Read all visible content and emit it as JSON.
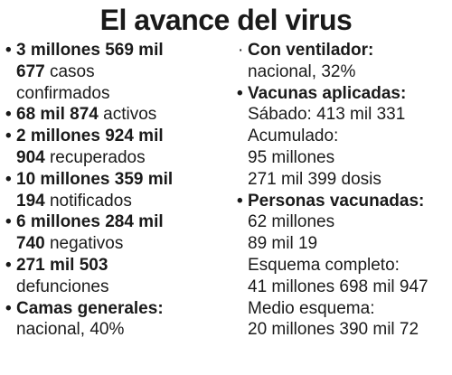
{
  "title": "El avance del virus",
  "left": [
    {
      "lines": [
        [
          {
            "t": "3 millones 569 mil",
            "b": true
          }
        ],
        [
          {
            "t": "677",
            "b": true
          },
          {
            "t": " casos",
            "b": false
          }
        ],
        [
          {
            "t": "confirmados",
            "b": false
          }
        ]
      ]
    },
    {
      "lines": [
        [
          {
            "t": "68 mil 874",
            "b": true
          },
          {
            "t": " activos",
            "b": false
          }
        ]
      ]
    },
    {
      "lines": [
        [
          {
            "t": "2 millones 924 mil",
            "b": true
          }
        ],
        [
          {
            "t": "904",
            "b": true
          },
          {
            "t": " recuperados",
            "b": false
          }
        ]
      ]
    },
    {
      "lines": [
        [
          {
            "t": "10 millones 359 mil",
            "b": true
          }
        ],
        [
          {
            "t": "194",
            "b": true
          },
          {
            "t": " notificados",
            "b": false
          }
        ]
      ]
    },
    {
      "lines": [
        [
          {
            "t": "6 millones 284 mil",
            "b": true
          }
        ],
        [
          {
            "t": "740",
            "b": true
          },
          {
            "t": " negativos",
            "b": false
          }
        ]
      ]
    },
    {
      "lines": [
        [
          {
            "t": "271 mil 503",
            "b": true
          }
        ],
        [
          {
            "t": "defunciones",
            "b": false
          }
        ]
      ]
    },
    {
      "lines": [
        [
          {
            "t": "Camas generales:",
            "b": true
          }
        ],
        [
          {
            "t": "nacional, 40%",
            "b": false
          }
        ]
      ]
    }
  ],
  "right": [
    {
      "lines": [
        [
          {
            "t": "Con ventilador:",
            "b": true
          }
        ],
        [
          {
            "t": "nacional, 32%",
            "b": false
          }
        ]
      ]
    },
    {
      "lines": [
        [
          {
            "t": "Vacunas aplicadas:",
            "b": true
          }
        ],
        [
          {
            "t": "Sábado: 413 mil 331",
            "b": false
          }
        ],
        [
          {
            "t": "Acumulado:",
            "b": false
          }
        ],
        [
          {
            "t": "95 millones",
            "b": false
          }
        ],
        [
          {
            "t": "271 mil 399 dosis",
            "b": false
          }
        ]
      ]
    },
    {
      "lines": [
        [
          {
            "t": "Personas vacunadas:",
            "b": true
          }
        ],
        [
          {
            "t": "62 millones",
            "b": false
          }
        ],
        [
          {
            "t": "89 mil 19",
            "b": false
          }
        ],
        [
          {
            "t": "Esquema completo:",
            "b": false
          }
        ],
        [
          {
            "t": "41 millones 698 mil 947",
            "b": false
          }
        ],
        [
          {
            "t": "Medio esquema:",
            "b": false
          }
        ],
        [
          {
            "t": "20 millones 390 mil 72",
            "b": false
          }
        ]
      ]
    }
  ],
  "bullets": {
    "left": [
      "•",
      "•",
      "•",
      "•",
      "•",
      "•",
      "•"
    ],
    "right": [
      "·",
      "•",
      "•"
    ]
  }
}
